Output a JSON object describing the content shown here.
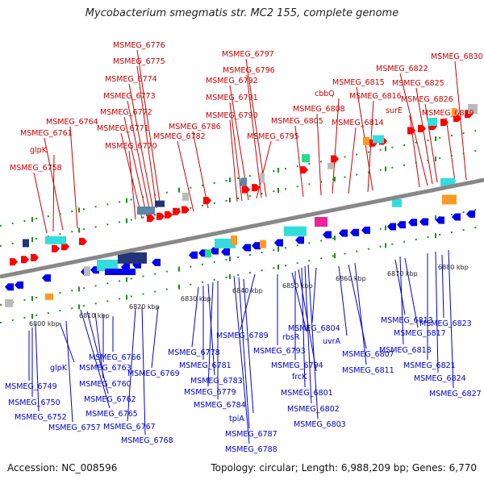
{
  "title": "Mycobacterium smegmatis str. MC2 155, complete genome",
  "footer": {
    "accession": "Accession: NC_008596",
    "summary": "Topology: circular; Length: 6,988,209 bp; Genes: 6,770"
  },
  "colors": {
    "top_label": "#cc0000",
    "bottom_label": "#0000cc",
    "backbone": "#888888",
    "tick": "#228b22",
    "forward_gene": "#ff0000",
    "reverse_gene": "#0000ee",
    "cds_cyan": "#33dddd",
    "cds_orange": "#ff9922",
    "cds_navy": "#223377",
    "cds_pink": "#ee2299",
    "cds_green": "#22dd88",
    "cds_gray": "#bbbbbb",
    "cds_steel": "#5588aa"
  },
  "scale_labels": [
    "6800 kbp",
    "6810 kbp",
    "6820 kbp",
    "6830 kbp",
    "6840 kbp",
    "6850 kbp",
    "6860 kbp",
    "6870 kbp",
    "6880 kbp"
  ],
  "top_genes": [
    "MSMEG_6776",
    "MSMEG_6775",
    "MSMEG_6774",
    "MSMEG_6773",
    "MSMEG_6772",
    "MSMEG_6771",
    "MSMEG_6770",
    "MSMEG_6764",
    "MSMEG_6761",
    "glpK",
    "MSMEG_6758",
    "MSMEG_6797",
    "MSMEG_6796",
    "MSMEG_6792",
    "MSMEG_6791",
    "MSMEG_6790",
    "MSMEG_6786",
    "MSMEG_6782",
    "MSMEG_6795",
    "MSMEG_6830",
    "MSMEG_6822",
    "MSMEG_6815",
    "MSMEG_6825",
    "cbbQ",
    "MSMEG_6816",
    "MSMEG_6826",
    "MSMEG_6808",
    "surE",
    "MSMEG_6829",
    "MSMEG_6805",
    "MSMEG_6814"
  ],
  "bottom_genes": [
    "MSMEG_6749",
    "MSMEG_6750",
    "MSMEG_6752",
    "glpK",
    "MSMEG_6757",
    "MSMEG_6766",
    "MSMEG_6763",
    "MSMEG_6760",
    "MSMEG_6762",
    "MSMEG_6765",
    "MSMEG_6767",
    "MSMEG_6768",
    "MSMEG_6769",
    "MSMEG_6778",
    "MSMEG_6781",
    "MSMEG_6783",
    "MSMEG_6779",
    "MSMEG_6784",
    "tpiA",
    "MSMEG_6787",
    "MSMEG_6788",
    "MSMEG_6789",
    "MSMEG_6793",
    "rbsR",
    "MSMEG_6794",
    "frcK",
    "MSMEG_6801",
    "MSMEG_6802",
    "MSMEG_6803",
    "MSMEG_6804",
    "uvrA",
    "MSMEG_6807",
    "MSMEG_6811",
    "MSMEG_6813",
    "MSMEG_6817",
    "MSMEG_6818",
    "MSMEG_6823",
    "MSMEG_6821",
    "MSMEG_6824",
    "MSMEG_6827"
  ]
}
